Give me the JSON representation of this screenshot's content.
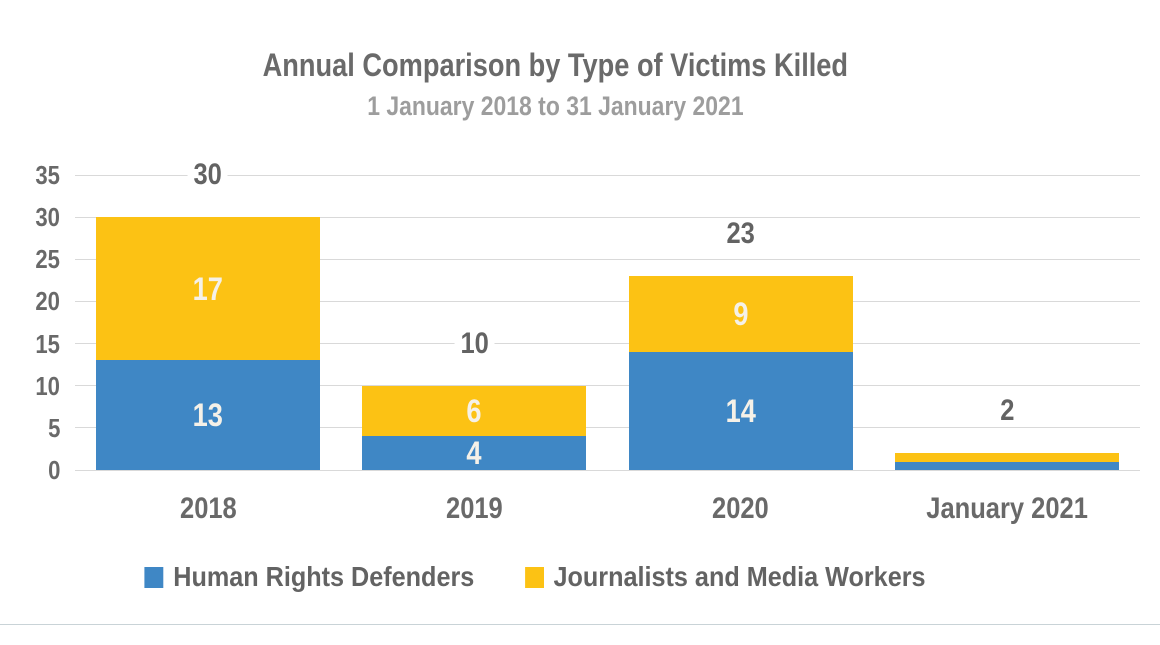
{
  "chart_data": {
    "type": "bar",
    "stacked": true,
    "title": "Annual Comparison by Type of Victims Killed",
    "subtitle": "1 January 2018 to 31 January 2021",
    "categories": [
      "2018",
      "2019",
      "2020",
      "January 2021"
    ],
    "series": [
      {
        "name": "Human Rights Defenders",
        "color": "#3f87c5",
        "values": [
          13,
          4,
          14,
          1
        ]
      },
      {
        "name": "Journalists and Media Workers",
        "color": "#fcc214",
        "values": [
          17,
          6,
          9,
          1
        ]
      }
    ],
    "totals": [
      30,
      10,
      23,
      2
    ],
    "y_ticks": [
      0,
      5,
      10,
      15,
      20,
      25,
      30,
      35
    ],
    "ylim": [
      0,
      35
    ],
    "grid": true,
    "legend_position": "bottom",
    "gridline_color": "#d9d9d9",
    "value_label_color": "#f5f1e8",
    "axis_text_color": "#696969"
  }
}
